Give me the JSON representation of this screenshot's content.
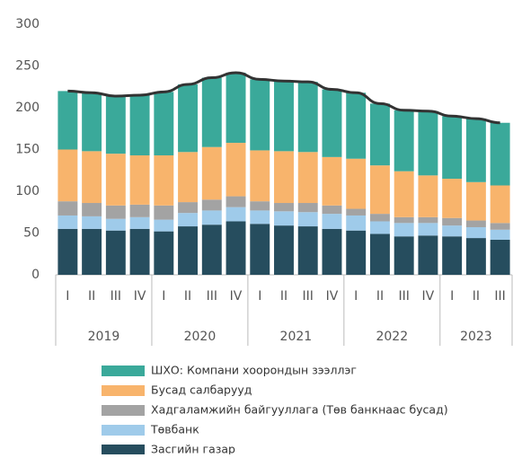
{
  "chart_data": {
    "type": "stacked_bar",
    "groups": [
      {
        "label": "2019",
        "categories": [
          "I",
          "II",
          "III",
          "IV"
        ]
      },
      {
        "label": "2020",
        "categories": [
          "I",
          "II",
          "III",
          "IV"
        ]
      },
      {
        "label": "2021",
        "categories": [
          "I",
          "II",
          "III",
          "IV"
        ]
      },
      {
        "label": "2022",
        "categories": [
          "I",
          "II",
          "III",
          "IV"
        ]
      },
      {
        "label": "2023",
        "categories": [
          "I",
          "II",
          "III"
        ]
      }
    ],
    "series": [
      {
        "name": "Засгийн газар",
        "color": "#264d5e",
        "values": [
          55,
          55,
          53,
          55,
          52,
          58,
          60,
          64,
          61,
          59,
          58,
          55,
          53,
          49,
          46,
          47,
          46,
          44,
          42
        ]
      },
      {
        "name": "Төвбанк",
        "color": "#9fcbea",
        "values": [
          16,
          15,
          14,
          14,
          14,
          16,
          17,
          17,
          16,
          17,
          17,
          18,
          18,
          15,
          16,
          15,
          13,
          13,
          12
        ]
      },
      {
        "name": "Хадгаламжийн байгууллага (Төв банкнаас бусад)",
        "color": "#a3a3a3",
        "values": [
          17,
          16,
          16,
          15,
          17,
          13,
          13,
          13,
          11,
          10,
          11,
          10,
          8,
          9,
          7,
          7,
          9,
          8,
          8
        ]
      },
      {
        "name": "Бусад салбарууд",
        "color": "#f8b46c",
        "values": [
          62,
          62,
          62,
          59,
          60,
          60,
          63,
          64,
          61,
          62,
          61,
          58,
          60,
          58,
          55,
          50,
          47,
          46,
          45
        ]
      },
      {
        "name": "ШХО: Компани хоорондын зээллэг",
        "color": "#3aa99a",
        "values": [
          70,
          70,
          69,
          72,
          76,
          81,
          83,
          84,
          85,
          84,
          84,
          81,
          79,
          74,
          73,
          77,
          75,
          76,
          75
        ]
      }
    ],
    "line": {
      "color": "#333333",
      "values": [
        220,
        218,
        214,
        215,
        219,
        228,
        236,
        242,
        234,
        232,
        231,
        222,
        218,
        205,
        197,
        196,
        190,
        187,
        182
      ]
    },
    "ylim": [
      0,
      300
    ],
    "yticks": [
      0,
      50,
      100,
      150,
      200,
      250,
      300
    ],
    "grid": false
  }
}
